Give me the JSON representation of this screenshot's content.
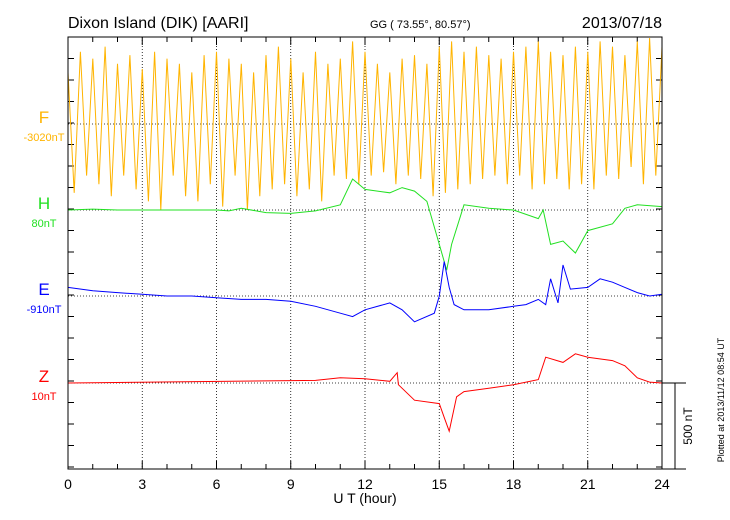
{
  "chart_data": {
    "type": "line",
    "title": "Dixon Island (DIK)  [AARI]",
    "coords": "GG ( 73.55°,  80.57°)",
    "date": "2013/07/18",
    "xlabel": "U T (hour)",
    "xlim": [
      0,
      24
    ],
    "xticks": [
      "0",
      "3",
      "6",
      "9",
      "12",
      "15",
      "18",
      "21",
      "24"
    ],
    "scale_label": "500 nT",
    "footnote": "Plotted at 2013/11/12 08:54  UT",
    "series": [
      {
        "name": "F",
        "baseline_label": "-3020nT",
        "color": "#ffb400",
        "x": [
          0,
          0.25,
          0.5,
          0.75,
          1,
          1.25,
          1.5,
          1.75,
          2,
          2.25,
          2.5,
          2.75,
          3,
          3.25,
          3.5,
          3.75,
          4,
          4.25,
          4.5,
          4.75,
          5,
          5.25,
          5.5,
          5.75,
          6,
          6.25,
          6.5,
          6.75,
          7,
          7.25,
          7.5,
          7.75,
          8,
          8.25,
          8.5,
          8.75,
          9,
          9.25,
          9.5,
          9.75,
          10,
          10.25,
          10.5,
          10.75,
          11,
          11.25,
          11.5,
          11.75,
          12,
          12.25,
          12.5,
          12.75,
          13,
          13.25,
          13.5,
          13.75,
          14,
          14.25,
          14.5,
          14.75,
          15,
          15.25,
          15.5,
          15.75,
          16,
          16.25,
          16.5,
          16.75,
          17,
          17.25,
          17.5,
          17.75,
          18,
          18.25,
          18.5,
          18.75,
          19,
          19.25,
          19.5,
          19.75,
          20,
          20.25,
          20.5,
          20.75,
          21,
          21.25,
          21.5,
          21.75,
          22,
          22.25,
          22.5,
          22.75,
          23,
          23.25,
          23.5,
          23.75,
          24
        ],
        "values": [
          300,
          -400,
          420,
          -300,
          380,
          -350,
          450,
          -420,
          350,
          -300,
          400,
          -380,
          320,
          -450,
          420,
          -500,
          380,
          -300,
          350,
          -420,
          300,
          -450,
          400,
          -350,
          420,
          -480,
          380,
          -300,
          350,
          -500,
          300,
          -420,
          400,
          -380,
          450,
          -350,
          380,
          -420,
          300,
          -380,
          420,
          -450,
          350,
          -300,
          380,
          -320,
          480,
          -350,
          420,
          -300,
          350,
          -280,
          300,
          -350,
          380,
          -300,
          400,
          -320,
          350,
          -420,
          450,
          -400,
          480,
          -380,
          420,
          -350,
          450,
          -320,
          400,
          -300,
          380,
          -350,
          420,
          -300,
          450,
          -380,
          480,
          -350,
          420,
          -320,
          400,
          -380,
          450,
          -350,
          420,
          -380,
          480,
          -300,
          450,
          -320,
          400,
          -250,
          480,
          -350,
          500,
          -300,
          450
        ]
      },
      {
        "name": "H",
        "baseline_label": "80nT",
        "color": "#22e022",
        "x": [
          0,
          1,
          2,
          3,
          4,
          5,
          6,
          6.5,
          7,
          8,
          9,
          10,
          11,
          11.5,
          12,
          13,
          13.5,
          14,
          14.5,
          15,
          15.3,
          15.5,
          16,
          17,
          18,
          19,
          19.2,
          19.5,
          20,
          20.5,
          21,
          22,
          22.5,
          23,
          24
        ],
        "values": [
          0,
          5,
          0,
          0,
          0,
          0,
          0,
          -5,
          10,
          -15,
          -20,
          -5,
          30,
          180,
          120,
          100,
          130,
          110,
          50,
          -200,
          -350,
          -200,
          30,
          10,
          0,
          -50,
          0,
          -200,
          -180,
          -250,
          -120,
          -80,
          10,
          30,
          20
        ]
      },
      {
        "name": "E",
        "baseline_label": "-910nT",
        "color": "#0000ff",
        "x": [
          0,
          1,
          2,
          3,
          4,
          5,
          6,
          7,
          8,
          9,
          10,
          11,
          11.5,
          12,
          13,
          13.5,
          14,
          14.8,
          15,
          15.2,
          15.4,
          15.6,
          16,
          17,
          18,
          18.5,
          19,
          19.3,
          19.5,
          19.8,
          20,
          20.3,
          21,
          21.5,
          22,
          22.5,
          23,
          23.5,
          24
        ],
        "values": [
          50,
          30,
          20,
          10,
          0,
          0,
          -10,
          -20,
          -20,
          -30,
          -60,
          -100,
          -120,
          -80,
          -40,
          -80,
          -150,
          -100,
          0,
          200,
          50,
          -50,
          -80,
          -80,
          -60,
          -50,
          -20,
          -50,
          100,
          -40,
          180,
          40,
          50,
          100,
          80,
          50,
          20,
          0,
          10
        ]
      },
      {
        "name": "Z",
        "baseline_label": "10nT",
        "color": "#ff0000",
        "x": [
          0,
          10,
          11,
          12,
          13,
          13.3,
          13.35,
          14,
          15,
          15.2,
          15.4,
          15.7,
          16,
          17,
          18,
          19,
          19.3,
          20,
          20.5,
          21,
          22,
          22.5,
          23,
          23.5,
          24
        ],
        "values": [
          0,
          15,
          30,
          25,
          10,
          60,
          -10,
          -100,
          -120,
          -200,
          -280,
          -80,
          -50,
          -30,
          -10,
          20,
          150,
          120,
          170,
          150,
          130,
          100,
          30,
          5,
          0
        ]
      }
    ]
  }
}
